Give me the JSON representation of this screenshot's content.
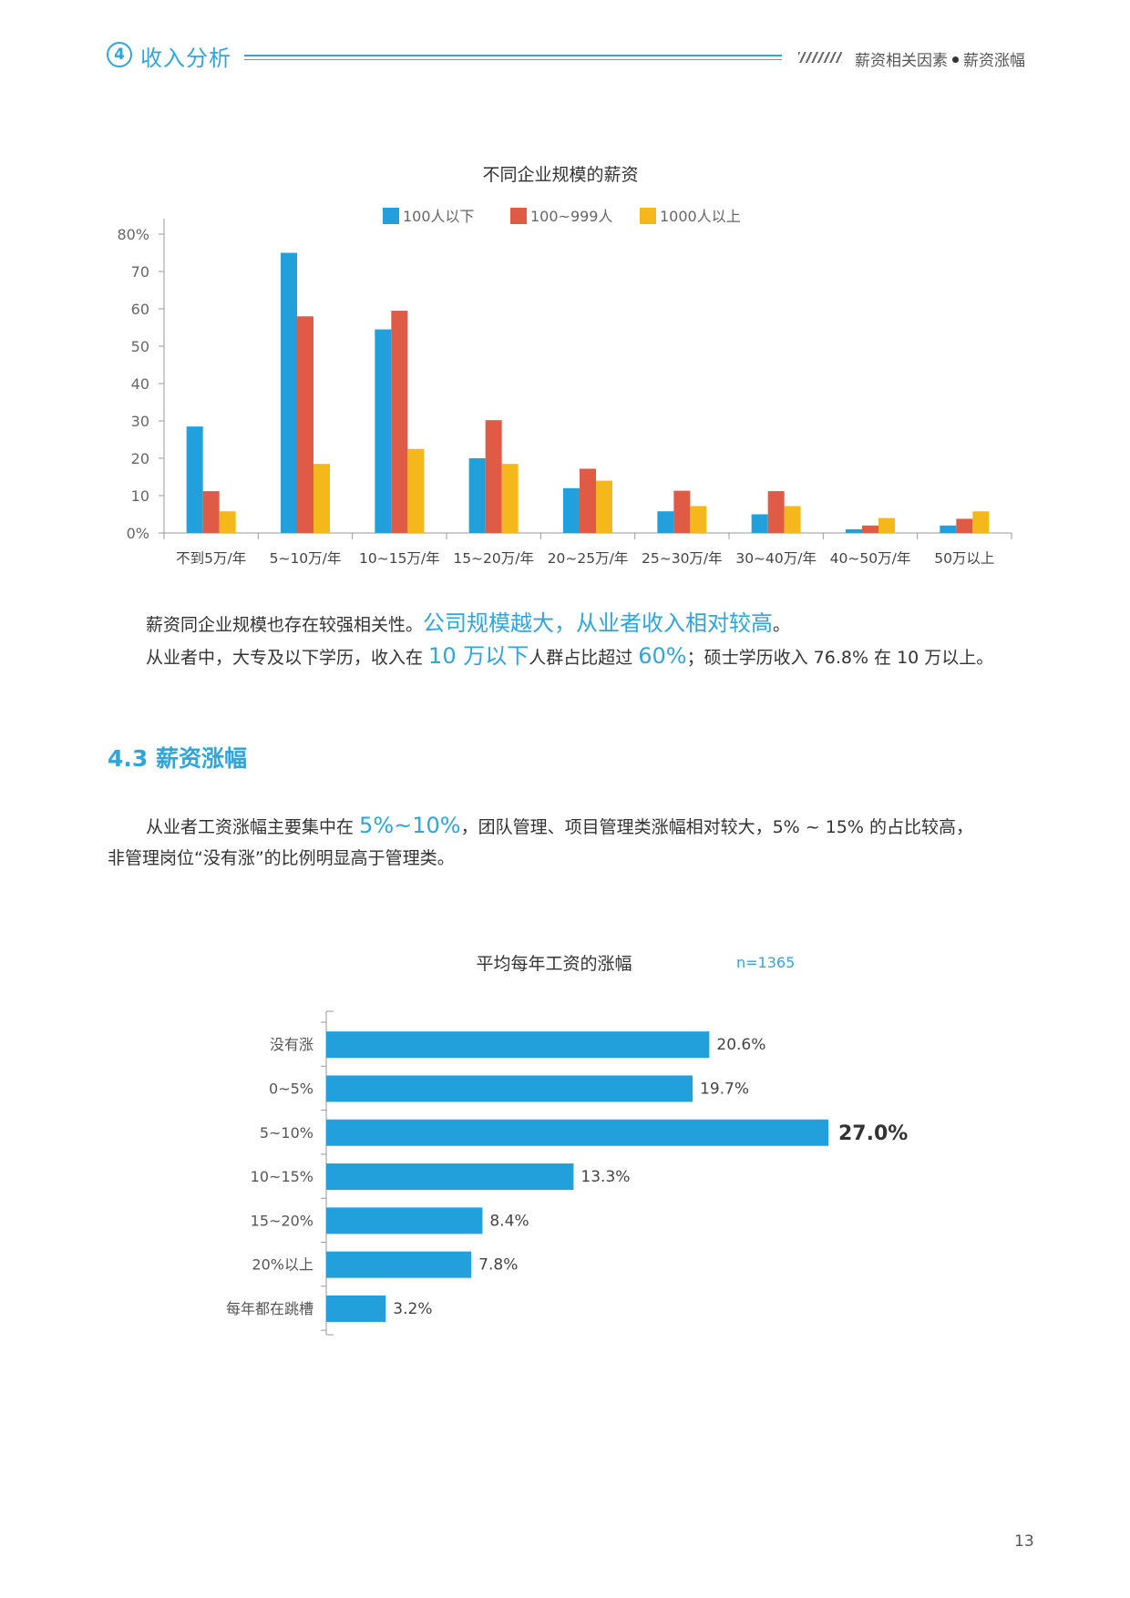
{
  "header": {
    "section_number": "4",
    "section_title": "收入分析",
    "breadcrumb_a": "薪资相关因素",
    "breadcrumb_b": "薪资涨幅"
  },
  "chart_data": [
    {
      "type": "bar",
      "title": "不同企业规模的薪资",
      "categories": [
        "不到5万/年",
        "5~10万/年",
        "10~15万/年",
        "15~20万/年",
        "20~25万/年",
        "25~30万/年",
        "30~40万/年",
        "40~50万/年",
        "50万以上"
      ],
      "series": [
        {
          "name": "100人以下",
          "color": "#22a0dc",
          "values": [
            28.5,
            75,
            54.5,
            20,
            12,
            5.8,
            5,
            1,
            2
          ]
        },
        {
          "name": "100~999人",
          "color": "#e05b45",
          "values": [
            11.2,
            58,
            59.5,
            30.2,
            17.2,
            11.3,
            11.2,
            2,
            3.8
          ]
        },
        {
          "name": "1000人以上",
          "color": "#f4b81c",
          "values": [
            5.8,
            18.5,
            22.5,
            18.5,
            14,
            7.2,
            7.2,
            4,
            5.8
          ]
        }
      ],
      "yticks": [
        "0%",
        "10",
        "20",
        "30",
        "40",
        "50",
        "60",
        "70",
        "80%"
      ],
      "ylim": [
        0,
        80
      ],
      "legend": "top-center"
    },
    {
      "type": "bar",
      "orientation": "horizontal",
      "title": "平均每年工资的涨幅",
      "note": "n=1365",
      "color": "#22a0dc",
      "categories": [
        "没有涨",
        "0~5%",
        "5~10%",
        "10~15%",
        "15~20%",
        "20%以上",
        "每年都在跳槽"
      ],
      "values": [
        20.6,
        19.7,
        27.0,
        13.3,
        8.4,
        7.8,
        3.2
      ],
      "labels": [
        "20.6%",
        "19.7%",
        "27.0%",
        "13.3%",
        "8.4%",
        "7.8%",
        "3.2%"
      ],
      "highlight_index": 2
    }
  ],
  "text": {
    "p1_a": "薪资同企业规模也存在较强相关性。",
    "p1_hl": "公司规模越大，从业者收入相对较高",
    "p1_end": "。",
    "p2_a": "从业者中，大专及以下学历，收入在 ",
    "p2_hl1": "10 万以下",
    "p2_b": "人群占比超过 ",
    "p2_hl2": "60%",
    "p2_c": "；硕士学历收入 76.8% 在 10 万以上。",
    "section_heading": "4.3 薪资涨幅",
    "p3_a": "从业者工资涨幅主要集中在 ",
    "p3_hl": "5%~10%",
    "p3_b": "，团队管理、项目管理类涨幅相对较大，5% ~ 15% 的占比较高，",
    "p4": "非管理岗位“没有涨”的比例明显高于管理类。"
  },
  "page_number": "13"
}
